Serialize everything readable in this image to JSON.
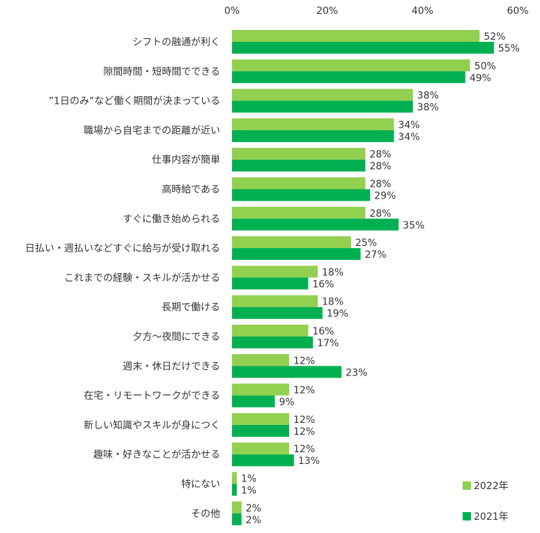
{
  "chart_data": {
    "type": "bar",
    "orientation": "horizontal",
    "xlim": [
      0,
      60
    ],
    "x_ticks": [
      "0%",
      "20%",
      "40%",
      "60%"
    ],
    "grid": false,
    "legend_position": "bottom-right",
    "categories": [
      "シフトの融通が利く",
      "隙間時間・短時間でできる",
      "”1日のみ”など働く期間が決まっている",
      "職場から自宅までの距離が近い",
      "仕事内容が簡単",
      "高時給である",
      "すぐに働き始められる",
      "日払い・週払いなどすぐに給与が受け取れる",
      "これまでの経験・スキルが活かせる",
      "長期で働ける",
      "夕方～夜間にできる",
      "週末・休日だけできる",
      "在宅・リモートワークができる",
      "新しい知識やスキルが身につく",
      "趣味・好きなことが活かせる",
      "特にない",
      "その他"
    ],
    "series": [
      {
        "name": "2022年",
        "color": "#92d050",
        "values": [
          52,
          50,
          38,
          34,
          28,
          28,
          28,
          25,
          18,
          18,
          16,
          12,
          12,
          12,
          12,
          1,
          2
        ]
      },
      {
        "name": "2021年",
        "color": "#00b050",
        "values": [
          55,
          49,
          38,
          34,
          28,
          29,
          35,
          27,
          16,
          19,
          17,
          23,
          9,
          12,
          13,
          1,
          2
        ]
      }
    ],
    "value_suffix": "%"
  }
}
